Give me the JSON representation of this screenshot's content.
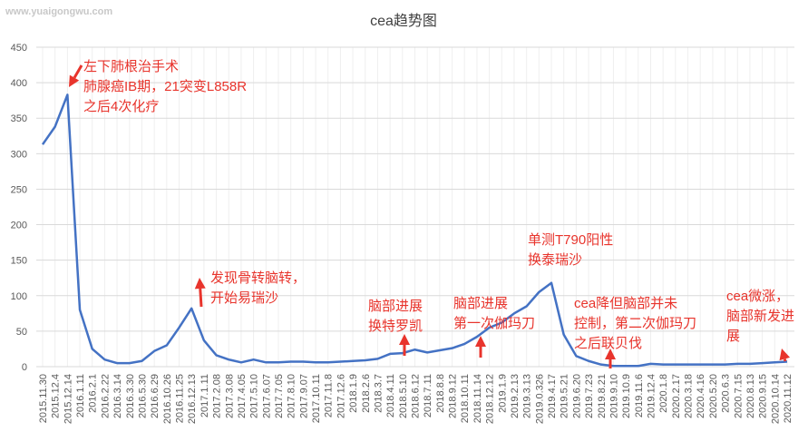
{
  "chart_data": {
    "type": "line",
    "title": "cea趋势图",
    "watermark": "www.yuaigongwu.com",
    "categories": [
      "2015.11.30",
      "2015.12.4",
      "2015.12.14",
      "2016.1.11",
      "2016.2.1",
      "2016.2.22",
      "2016.3.14",
      "2016.3.30",
      "2016.5.30",
      "2016.6.29",
      "2016.10.26",
      "2016.11.25",
      "2016.12.13",
      "2017.1.11",
      "2017.2.08",
      "2017.3.08",
      "2017.4.05",
      "2017.5.10",
      "2017.6.07",
      "2017.7.05",
      "2017.8.10",
      "2017.9.07",
      "2017.10.11",
      "2017.11.8",
      "2017.12.6",
      "2018.1.9",
      "2018.2.6",
      "2018.3.7",
      "2018.4.11",
      "2018.5.10",
      "2018.6.12",
      "2018.7.11",
      "2018.8.8",
      "2018.9.12",
      "2018.10.11",
      "2018.11.14",
      "2018.12.12",
      "2019.1.9",
      "2019.2.13",
      "2019.3.13",
      "2019.0.326",
      "2019.4.17",
      "2019.5.21",
      "2019.6.20",
      "2019.7.23",
      "2019.8.21",
      "2019.9.10",
      "2019.10.9",
      "2019.11.6",
      "2019.12.4",
      "2020.1.8",
      "2020.2.17",
      "2020.3.18",
      "2020.4.16",
      "2020.5.20",
      "2020.6.3",
      "2020.7.15",
      "2020.8.13",
      "2020.9.15",
      "2020.10.14",
      "2020.11.12"
    ],
    "values": [
      313,
      338,
      383,
      80,
      25,
      10,
      5,
      5,
      8,
      22,
      30,
      55,
      82,
      37,
      16,
      10,
      6,
      10,
      6,
      6,
      7,
      7,
      6,
      6,
      7,
      8,
      9,
      11,
      18,
      19,
      24,
      20,
      23,
      26,
      32,
      42,
      55,
      62,
      75,
      85,
      105,
      118,
      45,
      15,
      8,
      3,
      1,
      1,
      1,
      4,
      3,
      3,
      3,
      3,
      3,
      3,
      4,
      4,
      5,
      6,
      7
    ],
    "color": "#4472c4",
    "ylim": [
      0,
      450
    ],
    "yticks": [
      0,
      50,
      100,
      150,
      200,
      250,
      300,
      350,
      400,
      450
    ],
    "grid": true,
    "annotations": [
      [
        "左下肺根治手术",
        "肺腺癌IB期，21突变L858R",
        "之后4次化疗"
      ],
      [
        "发现骨转脑转，",
        "开始易瑞沙"
      ],
      [
        "脑部进展",
        "换特罗凯"
      ],
      [
        "脑部进展",
        "第一次伽玛刀"
      ],
      [
        "单测T790阳性",
        "换泰瑞沙"
      ],
      [
        "cea降但脑部并未",
        "控制，第二次伽玛刀",
        "之后联贝伐"
      ],
      [
        "cea微涨，",
        "脑部新发进",
        "展"
      ]
    ]
  }
}
